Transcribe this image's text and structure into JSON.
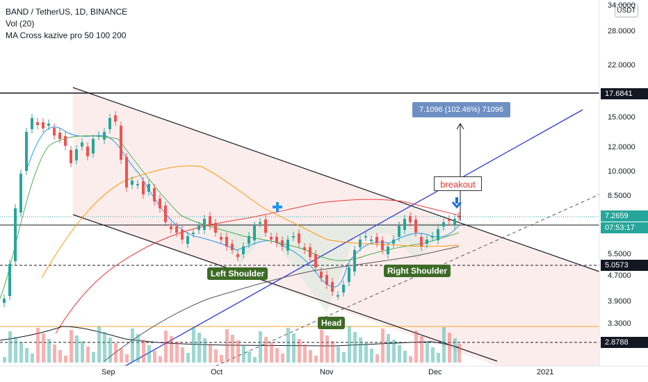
{
  "legend": {
    "symbol": "BAND / TetherUS, 1D, BINANCE",
    "volume": "Vol (20)",
    "ma_cross": "MA Cross kazive pro 50 100 200"
  },
  "currency_button": "USDT",
  "price_axis": [
    "34.0000",
    "28.0000",
    "22.0000",
    "15.0000",
    "12.0000",
    "10.0000",
    "8.5000",
    "5.5000",
    "4.7000",
    "3.9000",
    "3.3000"
  ],
  "time_axis": [
    "Sep",
    "Oct",
    "Nov",
    "Dec",
    "2021"
  ],
  "price_tags": [
    {
      "label": "17.6841",
      "style": "dark"
    },
    {
      "label": "7.2659",
      "style": "teal"
    },
    {
      "label": "07:53:17",
      "style": "teal"
    },
    {
      "label": "5.0573",
      "style": "dark"
    },
    {
      "label": "2.8788",
      "style": "dark"
    }
  ],
  "annotations": {
    "left_shoulder": "Left Shoulder",
    "head": "Head",
    "right_shoulder": "Right Shoulder",
    "breakout": "breakout",
    "measure": "7.1096 (102.46%) 71096"
  },
  "colors": {
    "up": "#26a69a",
    "down": "#ef5350",
    "ma_blue": "#2196f3",
    "ma_green": "#4caf50",
    "ma_orange": "#ff9800",
    "ma_red": "#e53935",
    "trendline": "#2a36d6",
    "annotation_bg": "#3d6b26"
  }
}
